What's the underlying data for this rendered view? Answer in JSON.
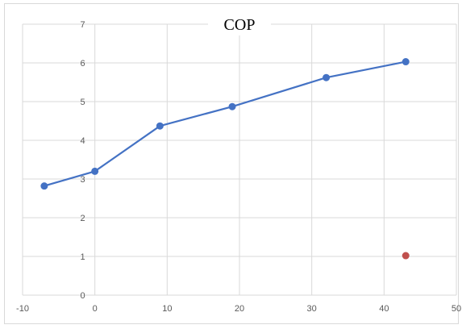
{
  "chart_data": {
    "type": "scatter",
    "title": "COP",
    "xlabel": "",
    "ylabel": "",
    "xlim": [
      -10,
      50
    ],
    "ylim": [
      0,
      7
    ],
    "x_ticks": [
      -10,
      0,
      10,
      20,
      30,
      40,
      50
    ],
    "y_ticks": [
      0,
      1,
      2,
      3,
      4,
      5,
      6,
      7
    ],
    "grid": true,
    "legend": "none",
    "series": [
      {
        "color": "#4472c4",
        "line": true,
        "points": [
          {
            "x": -7,
            "y": 2.82
          },
          {
            "x": 0,
            "y": 3.2
          },
          {
            "x": 9,
            "y": 4.37
          },
          {
            "x": 19,
            "y": 4.87
          },
          {
            "x": 32,
            "y": 5.62
          },
          {
            "x": 43,
            "y": 6.03
          }
        ]
      },
      {
        "color": "#c0504d",
        "line": false,
        "points": [
          {
            "x": 43,
            "y": 1.02
          }
        ]
      }
    ]
  }
}
